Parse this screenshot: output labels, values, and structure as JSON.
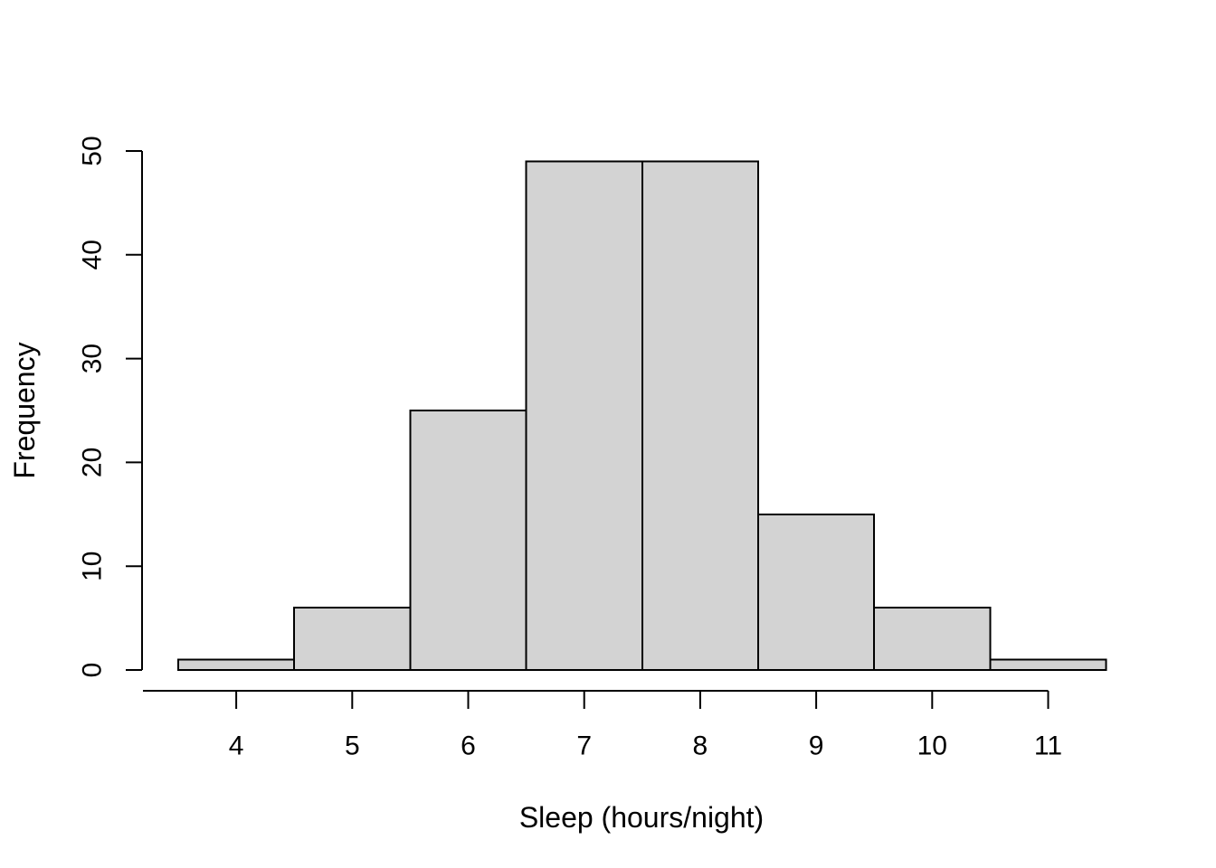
{
  "chart_data": {
    "type": "bar",
    "subtype": "histogram",
    "title": "",
    "xlabel": "Sleep (hours/night)",
    "ylabel": "Frequency",
    "bin_edges": [
      3.5,
      4.5,
      5.5,
      6.5,
      7.5,
      8.5,
      9.5,
      10.5,
      11.5
    ],
    "counts": [
      1,
      6,
      25,
      49,
      49,
      15,
      6,
      1
    ],
    "categories": [
      "3.5-4.5",
      "4.5-5.5",
      "5.5-6.5",
      "6.5-7.5",
      "7.5-8.5",
      "8.5-9.5",
      "9.5-10.5",
      "10.5-11.5"
    ],
    "x_ticks": [
      4,
      5,
      6,
      7,
      8,
      9,
      10,
      11
    ],
    "y_ticks": [
      0,
      10,
      20,
      30,
      40,
      50
    ],
    "xlim": [
      3.5,
      11.5
    ],
    "ylim": [
      0,
      50
    ],
    "grid": false,
    "legend": null,
    "bar_fill": "#d3d3d3",
    "bar_stroke": "#000000",
    "axis_color": "#000000",
    "background": "#ffffff"
  }
}
